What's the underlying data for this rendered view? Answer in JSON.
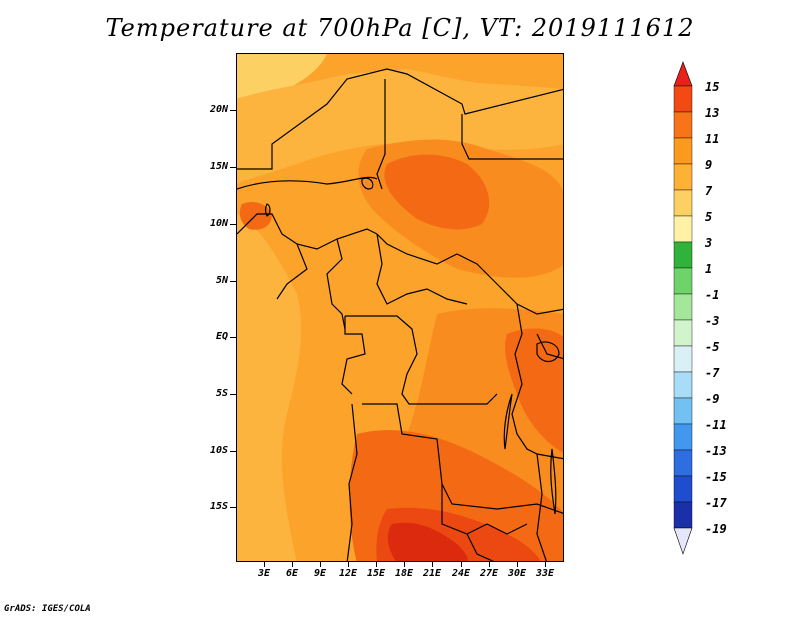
{
  "title": "Temperature at 700hPa [C], VT: 2019111612",
  "credit": "GrADS: IGES/COLA",
  "axes": {
    "y_labels": [
      "20N",
      "15N",
      "10N",
      "5N",
      "EQ",
      "5S",
      "10S",
      "15S"
    ],
    "x_labels": [
      "3E",
      "6E",
      "9E",
      "12E",
      "15E",
      "18E",
      "21E",
      "24E",
      "27E",
      "30E",
      "33E"
    ]
  },
  "colorbar": {
    "labels": [
      "15",
      "13",
      "11",
      "9",
      "7",
      "5",
      "3",
      "1",
      "-1",
      "-3",
      "-5",
      "-7",
      "-9",
      "-11",
      "-13",
      "-15",
      "-17",
      "-19"
    ],
    "colors": [
      "#e8221a",
      "#f24a12",
      "#f87418",
      "#fb9a1c",
      "#fdb235",
      "#fdd064",
      "#fff1a5",
      "#30b33a",
      "#6ed46a",
      "#a4e69a",
      "#d2f4cd",
      "#d9f0f7",
      "#a9dcf6",
      "#73c1f3",
      "#4298ee",
      "#2f6ee0",
      "#1e4ece",
      "#1a2fa8",
      "#0a1174"
    ]
  },
  "map_colors": {
    "base": "#fba32a",
    "light": "#fdb43e",
    "pale": "#fdd064",
    "warm": "#f98c1f",
    "hot": "#f46a14",
    "hotter": "#ec4811",
    "hottest": "#dc2a0e",
    "border": "#000000"
  }
}
